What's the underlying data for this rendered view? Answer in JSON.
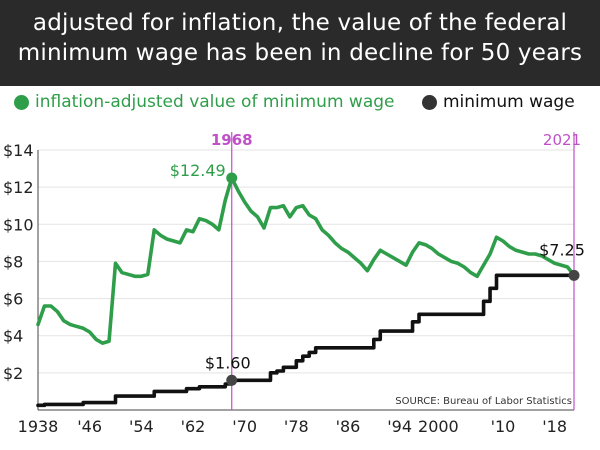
{
  "header": {
    "title_line1": "adjusted for inflation, the value of the federal",
    "title_line2": "minimum wage has been in decline for 50 years"
  },
  "legend": {
    "adjusted_label": "inflation-adjusted value of minimum wage",
    "nominal_label": "minimum wage"
  },
  "colors": {
    "adjusted": "#2f9e4a",
    "nominal": "#111111",
    "marker": "#c050c8",
    "background_header": "#2a2a2a"
  },
  "annotations": {
    "marker_1968": "1968",
    "marker_2021": "2021",
    "peak_label": "$12.49",
    "nominal_1968_label": "$1.60",
    "current_label": "$7.25",
    "source": "SOURCE: Bureau of Labor Statistics"
  },
  "chart_data": {
    "type": "line",
    "title": "adjusted for inflation, the value of the federal minimum wage has been in decline for 50 years",
    "xlim": [
      1938,
      2021
    ],
    "ylim": [
      0,
      14
    ],
    "x_ticks": [
      {
        "value": 1938,
        "label": "1938"
      },
      {
        "value": 1946,
        "label": "'46"
      },
      {
        "value": 1954,
        "label": "'54"
      },
      {
        "value": 1962,
        "label": "'62"
      },
      {
        "value": 1970,
        "label": "'70"
      },
      {
        "value": 1978,
        "label": "'78"
      },
      {
        "value": 1986,
        "label": "'86"
      },
      {
        "value": 1994,
        "label": "'94"
      },
      {
        "value": 2000,
        "label": "2000"
      },
      {
        "value": 2010,
        "label": "'10"
      },
      {
        "value": 2018,
        "label": "'18"
      }
    ],
    "y_ticks": [
      {
        "value": 2,
        "label": "$2"
      },
      {
        "value": 4,
        "label": "$4"
      },
      {
        "value": 6,
        "label": "$6"
      },
      {
        "value": 8,
        "label": "$8"
      },
      {
        "value": 10,
        "label": "$10"
      },
      {
        "value": 12,
        "label": "$12"
      },
      {
        "value": 14,
        "label": "$14"
      }
    ],
    "markers": [
      1968,
      2021
    ],
    "series": [
      {
        "name": "inflation-adjusted value of minimum wage",
        "points": [
          [
            1938,
            4.6
          ],
          [
            1939,
            5.6
          ],
          [
            1940,
            5.6
          ],
          [
            1941,
            5.3
          ],
          [
            1942,
            4.8
          ],
          [
            1943,
            4.6
          ],
          [
            1944,
            4.5
          ],
          [
            1945,
            4.4
          ],
          [
            1946,
            4.2
          ],
          [
            1947,
            3.8
          ],
          [
            1948,
            3.6
          ],
          [
            1949,
            3.7
          ],
          [
            1950,
            7.9
          ],
          [
            1951,
            7.4
          ],
          [
            1952,
            7.3
          ],
          [
            1953,
            7.2
          ],
          [
            1954,
            7.2
          ],
          [
            1955,
            7.3
          ],
          [
            1956,
            9.7
          ],
          [
            1957,
            9.4
          ],
          [
            1958,
            9.2
          ],
          [
            1959,
            9.1
          ],
          [
            1960,
            9.0
          ],
          [
            1961,
            9.7
          ],
          [
            1962,
            9.6
          ],
          [
            1963,
            10.3
          ],
          [
            1964,
            10.2
          ],
          [
            1965,
            10.0
          ],
          [
            1966,
            9.7
          ],
          [
            1967,
            11.3
          ],
          [
            1968,
            12.49
          ],
          [
            1969,
            11.8
          ],
          [
            1970,
            11.2
          ],
          [
            1971,
            10.7
          ],
          [
            1972,
            10.4
          ],
          [
            1973,
            9.8
          ],
          [
            1974,
            10.9
          ],
          [
            1975,
            10.9
          ],
          [
            1976,
            11.0
          ],
          [
            1977,
            10.4
          ],
          [
            1978,
            10.9
          ],
          [
            1979,
            11.0
          ],
          [
            1980,
            10.5
          ],
          [
            1981,
            10.3
          ],
          [
            1982,
            9.7
          ],
          [
            1983,
            9.4
          ],
          [
            1984,
            9.0
          ],
          [
            1985,
            8.7
          ],
          [
            1986,
            8.5
          ],
          [
            1987,
            8.2
          ],
          [
            1988,
            7.9
          ],
          [
            1989,
            7.5
          ],
          [
            1990,
            8.1
          ],
          [
            1991,
            8.6
          ],
          [
            1992,
            8.4
          ],
          [
            1993,
            8.2
          ],
          [
            1994,
            8.0
          ],
          [
            1995,
            7.8
          ],
          [
            1996,
            8.5
          ],
          [
            1997,
            9.0
          ],
          [
            1998,
            8.9
          ],
          [
            1999,
            8.7
          ],
          [
            2000,
            8.4
          ],
          [
            2001,
            8.2
          ],
          [
            2002,
            8.0
          ],
          [
            2003,
            7.9
          ],
          [
            2004,
            7.7
          ],
          [
            2005,
            7.4
          ],
          [
            2006,
            7.2
          ],
          [
            2007,
            7.8
          ],
          [
            2008,
            8.4
          ],
          [
            2009,
            9.3
          ],
          [
            2010,
            9.1
          ],
          [
            2011,
            8.8
          ],
          [
            2012,
            8.6
          ],
          [
            2013,
            8.5
          ],
          [
            2014,
            8.4
          ],
          [
            2015,
            8.4
          ],
          [
            2016,
            8.3
          ],
          [
            2017,
            8.1
          ],
          [
            2018,
            7.9
          ],
          [
            2019,
            7.8
          ],
          [
            2020,
            7.7
          ],
          [
            2021,
            7.25
          ]
        ]
      },
      {
        "name": "minimum wage",
        "points": [
          [
            1938,
            0.25
          ],
          [
            1939,
            0.3
          ],
          [
            1945,
            0.4
          ],
          [
            1949,
            0.4
          ],
          [
            1950,
            0.75
          ],
          [
            1955,
            0.75
          ],
          [
            1956,
            1.0
          ],
          [
            1960,
            1.0
          ],
          [
            1961,
            1.15
          ],
          [
            1963,
            1.25
          ],
          [
            1966,
            1.25
          ],
          [
            1967,
            1.4
          ],
          [
            1968,
            1.6
          ],
          [
            1973,
            1.6
          ],
          [
            1974,
            2.0
          ],
          [
            1975,
            2.1
          ],
          [
            1976,
            2.3
          ],
          [
            1977,
            2.3
          ],
          [
            1978,
            2.65
          ],
          [
            1979,
            2.9
          ],
          [
            1980,
            3.1
          ],
          [
            1981,
            3.35
          ],
          [
            1989,
            3.35
          ],
          [
            1990,
            3.8
          ],
          [
            1991,
            4.25
          ],
          [
            1995,
            4.25
          ],
          [
            1996,
            4.75
          ],
          [
            1997,
            5.15
          ],
          [
            2006,
            5.15
          ],
          [
            2007,
            5.85
          ],
          [
            2008,
            6.55
          ],
          [
            2009,
            7.25
          ],
          [
            2021,
            7.25
          ]
        ]
      }
    ]
  }
}
